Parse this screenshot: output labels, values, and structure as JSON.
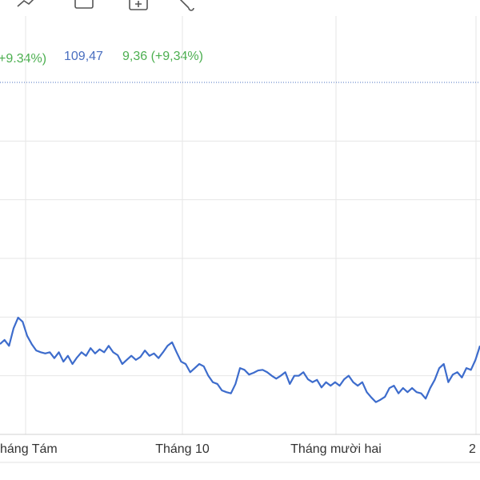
{
  "header": {
    "change_pct_cropped": "+9.34%)",
    "price": "109,47",
    "change": "9,36 (+9,34%)"
  },
  "chart_data": {
    "type": "line",
    "x_labels": [
      "háng Tám",
      "Tháng 10",
      "Tháng mười hai",
      "2"
    ],
    "series": [
      {
        "color": "#3d6ccc",
        "values": [
          1.54,
          1.61,
          1.51,
          1.81,
          1.99,
          1.92,
          1.68,
          1.54,
          1.43,
          1.4,
          1.38,
          1.4,
          1.3,
          1.4,
          1.24,
          1.34,
          1.2,
          1.31,
          1.4,
          1.34,
          1.47,
          1.38,
          1.45,
          1.4,
          1.51,
          1.4,
          1.35,
          1.2,
          1.27,
          1.34,
          1.27,
          1.32,
          1.43,
          1.34,
          1.38,
          1.3,
          1.4,
          1.51,
          1.57,
          1.4,
          1.24,
          1.2,
          1.06,
          1.13,
          1.2,
          1.16,
          1.0,
          0.89,
          0.86,
          0.75,
          0.72,
          0.7,
          0.86,
          1.13,
          1.1,
          1.02,
          1.05,
          1.09,
          1.1,
          1.06,
          1.0,
          0.95,
          1.0,
          1.06,
          0.86,
          1.0,
          1.0,
          1.06,
          0.94,
          0.89,
          0.93,
          0.8,
          0.89,
          0.83,
          0.89,
          0.83,
          0.94,
          1.0,
          0.89,
          0.83,
          0.89,
          0.72,
          0.63,
          0.55,
          0.59,
          0.64,
          0.79,
          0.83,
          0.7,
          0.79,
          0.72,
          0.79,
          0.72,
          0.7,
          0.61,
          0.79,
          0.93,
          1.13,
          1.2,
          0.89,
          1.02,
          1.06,
          0.97,
          1.13,
          1.1,
          1.27,
          1.51
        ]
      }
    ],
    "ylim": [
      0,
      6
    ],
    "yticks": [
      0,
      1,
      2,
      3,
      4,
      5
    ],
    "reference_line": 6,
    "grid": true
  }
}
